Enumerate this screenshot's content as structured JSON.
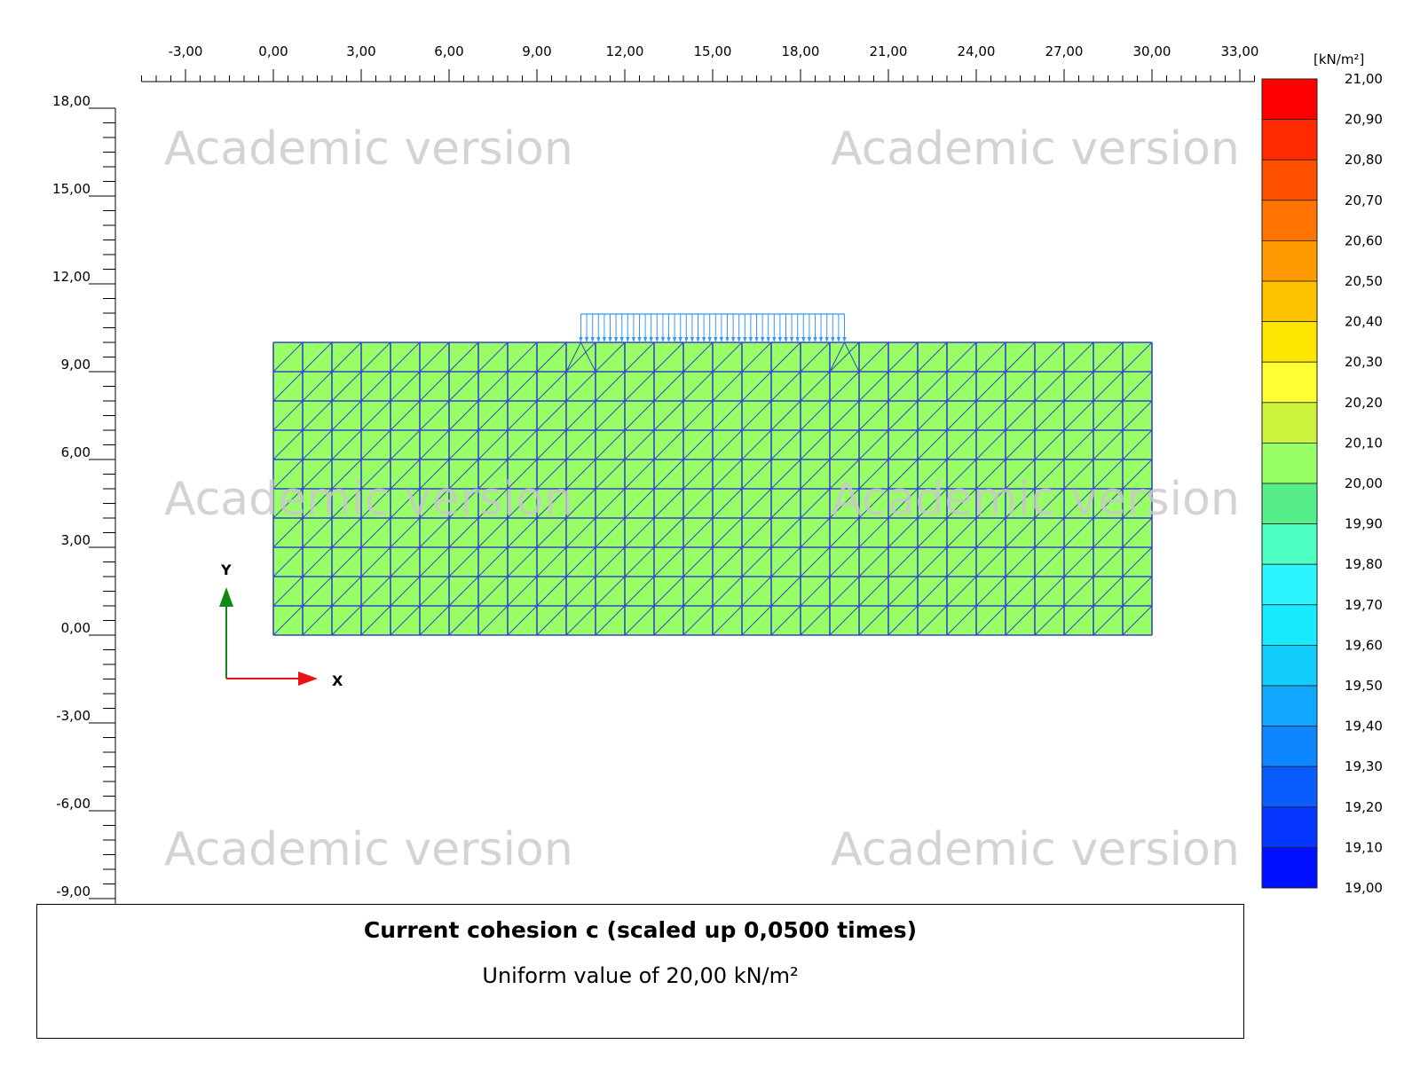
{
  "chart_data": {
    "type": "heatmap",
    "title": "Current cohesion c (scaled up 0,0500 times)",
    "subtitle": "Uniform value of 20,00 kN/m²",
    "uniform_value": 20.0,
    "unit": "[kN/m²]",
    "x_axis": {
      "range": [
        -4.5,
        33.5
      ],
      "tick_labels": [
        "-3,00",
        "0,00",
        "3,00",
        "6,00",
        "9,00",
        "12,00",
        "15,00",
        "18,00",
        "21,00",
        "24,00",
        "27,00",
        "30,00",
        "33,00"
      ],
      "tick_values": [
        -3,
        0,
        3,
        6,
        9,
        12,
        15,
        18,
        21,
        24,
        27,
        30,
        33
      ]
    },
    "y_axis": {
      "range": [
        -9.5,
        18.0
      ],
      "tick_labels": [
        "18,00",
        "15,00",
        "12,00",
        "9,00",
        "6,00",
        "3,00",
        "0,00",
        "-3,00",
        "-6,00",
        "-9,00"
      ],
      "tick_values": [
        18,
        15,
        12,
        9,
        6,
        3,
        0,
        -3,
        -6,
        -9
      ]
    },
    "mesh": {
      "x_min": 0,
      "x_max": 30,
      "y_min": 0,
      "y_max": 10,
      "columns": 30,
      "rows": 10
    },
    "load": {
      "x_start": 10.5,
      "x_end": 19.5,
      "y": 10
    },
    "legend": {
      "unit": "[kN/m²]",
      "labels": [
        "21,00",
        "20,90",
        "20,80",
        "20,70",
        "20,60",
        "20,50",
        "20,40",
        "20,30",
        "20,20",
        "20,10",
        "20,00",
        "19,90",
        "19,80",
        "19,70",
        "19,60",
        "19,50",
        "19,40",
        "19,30",
        "19,20",
        "19,10",
        "19,00"
      ],
      "colors": [
        "#ff0000",
        "#ff2a00",
        "#ff5000",
        "#ff7400",
        "#ff9a00",
        "#ffc200",
        "#ffe600",
        "#ffff32",
        "#ccf23c",
        "#99ff66",
        "#55ee88",
        "#4effc2",
        "#2bf6ff",
        "#18eaff",
        "#14cdff",
        "#12a8ff",
        "#0d86ff",
        "#0a5cff",
        "#0536ff",
        "#0010ff"
      ],
      "placement": "right"
    },
    "mesh_fill_color": "#99ff66",
    "mesh_line_color": "#3344cc",
    "load_color": "#3399ff",
    "watermarks": [
      "Academic version",
      "Academic version",
      "Academic version",
      "Academic version",
      "Academic version",
      "Academic version"
    ],
    "axis_indicator": {
      "x_label": "X",
      "y_label": "Y",
      "x_color": "#ee1111",
      "y_color": "#118811"
    }
  }
}
